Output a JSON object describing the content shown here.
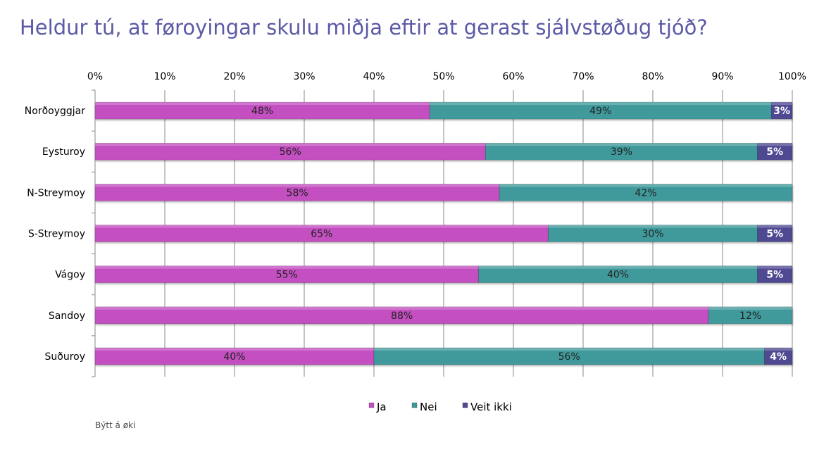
{
  "colors": {
    "ja": "#c34fc0",
    "nei": "#3f9a9c",
    "veit": "#4f4a92",
    "title": "#5b5aa6"
  },
  "footnote": "Býtt á øki",
  "chart_data": {
    "type": "bar",
    "orientation": "horizontal",
    "stacked": "percent",
    "title": "Heldur tú, at føroyingar skulu miðja eftir at gerast sjálvstøðug tjóð?",
    "xlim": [
      0,
      100
    ],
    "x_ticks": [
      "0%",
      "10%",
      "20%",
      "30%",
      "40%",
      "50%",
      "60%",
      "70%",
      "80%",
      "90%",
      "100%"
    ],
    "x_axis_position": "top",
    "grid": true,
    "legend_position": "bottom",
    "categories": [
      "Norðoyggjar",
      "Eysturoy",
      "N-Streymoy",
      "S-Streymoy",
      "Vágoy",
      "Sandoy",
      "Suðuroy"
    ],
    "series": [
      {
        "name": "Ja",
        "values": [
          48,
          56,
          58,
          65,
          55,
          88,
          40
        ],
        "labels": [
          "48%",
          "56%",
          "58%",
          "65%",
          "55%",
          "88%",
          "40%"
        ]
      },
      {
        "name": "Nei",
        "values": [
          49,
          39,
          42,
          30,
          40,
          12,
          56
        ],
        "labels": [
          "49%",
          "39%",
          "42%",
          "30%",
          "40%",
          "12%",
          "56%"
        ]
      },
      {
        "name": "Veit ikki",
        "values": [
          3,
          5,
          0,
          5,
          5,
          0,
          4
        ],
        "labels": [
          "3%",
          "5%",
          "",
          "5%",
          "5%",
          "",
          "4%"
        ]
      }
    ]
  }
}
